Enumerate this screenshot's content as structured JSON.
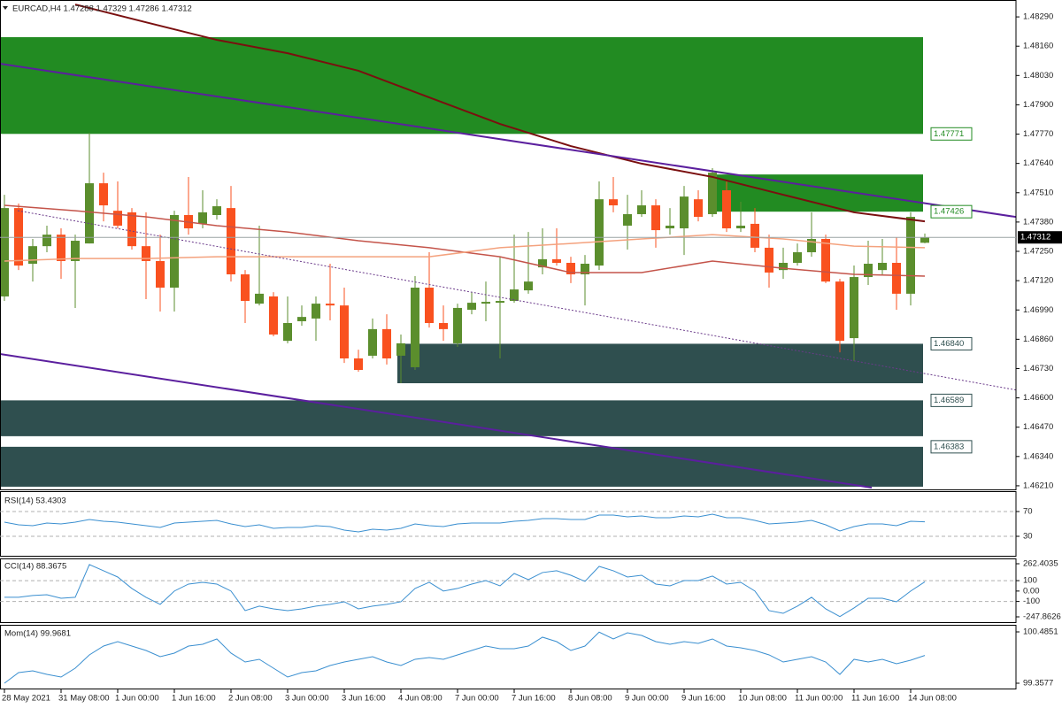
{
  "chart_data": {
    "type": "candlestick",
    "title": "EURCAD,H4  1.47288 1.47329 1.47286 1.47312",
    "categories": [
      "28 May 2021",
      null,
      null,
      null,
      "31 May 08:00",
      null,
      null,
      null,
      "1 Jun 00:00",
      null,
      null,
      null,
      "1 Jun 16:00",
      null,
      null,
      null,
      "2 Jun 08:00",
      null,
      null,
      null,
      "3 Jun 00:00",
      null,
      null,
      null,
      "3 Jun 16:00",
      null,
      null,
      null,
      "4 Jun 08:00",
      null,
      null,
      null,
      "7 Jun 00:00",
      null,
      null,
      null,
      "7 Jun 16:00",
      null,
      null,
      null,
      "8 Jun 08:00",
      null,
      null,
      null,
      "9 Jun 00:00",
      null,
      null,
      null,
      "9 Jun 16:00",
      null,
      null,
      null,
      "10 Jun 08:00",
      null,
      null,
      null,
      "11 Jun 00:00",
      null,
      null,
      null,
      "11 Jun 16:00",
      null,
      null,
      null,
      "14 Jun 08:00",
      null
    ],
    "open": [
      1.4705,
      1.47442,
      1.47195,
      1.47273,
      1.47324,
      1.47207,
      1.47285,
      1.47552,
      1.4743,
      1.47423,
      1.47273,
      1.47207,
      1.47089,
      1.47411,
      1.47372,
      1.47411,
      1.47442,
      1.47148,
      1.47018,
      1.4705,
      1.46853,
      1.4694,
      1.46952,
      1.47018,
      1.4701,
      1.46775,
      1.46787,
      1.46905,
      1.46787,
      1.46736,
      1.47089,
      1.46932,
      1.46842,
      1.46991,
      1.47018,
      1.47022,
      1.4703,
      1.47077,
      1.47179,
      1.47215,
      1.47199,
      1.47148,
      1.47187,
      1.47481,
      1.47364,
      1.47415,
      1.47454,
      1.47352,
      1.47352,
      1.47481,
      1.47415,
      1.47521,
      1.47352,
      1.47372,
      1.47266,
      1.47167,
      1.47199,
      1.47246,
      1.47305,
      1.47116,
      1.46865,
      1.47136,
      1.47167,
      1.47199,
      1.47062,
      1.47288
    ],
    "high": [
      1.47501,
      1.47462,
      1.47305,
      1.47364,
      1.47352,
      1.47324,
      1.47776,
      1.47599,
      1.4756,
      1.47442,
      1.47423,
      1.47324,
      1.4743,
      1.4758,
      1.47521,
      1.47481,
      1.4754,
      1.47167,
      1.47364,
      1.47069,
      1.4705,
      1.4701,
      1.4705,
      1.47195,
      1.47089,
      1.46814,
      1.46952,
      1.46971,
      1.46881,
      1.4714,
      1.47246,
      1.4701,
      1.47018,
      1.47069,
      1.47116,
      1.47226,
      1.47324,
      1.47336,
      1.47352,
      1.47352,
      1.47226,
      1.47234,
      1.4756,
      1.4758,
      1.47501,
      1.47521,
      1.47481,
      1.47442,
      1.4754,
      1.47521,
      1.47619,
      1.4756,
      1.4747,
      1.47442,
      1.47324,
      1.47266,
      1.47285,
      1.47423,
      1.47324,
      1.47128,
      1.47187,
      1.47297,
      1.47305,
      1.47312,
      1.47423,
      1.47329
    ],
    "low": [
      1.4703,
      1.47167,
      1.47116,
      1.47246,
      1.47128,
      1.46999,
      1.47285,
      1.47383,
      1.47352,
      1.47258,
      1.47038,
      1.46983,
      1.46983,
      1.47324,
      1.47352,
      1.47391,
      1.47116,
      1.46932,
      1.4701,
      1.46873,
      1.46842,
      1.4692,
      1.46853,
      1.46944,
      1.46755,
      1.46716,
      1.46775,
      1.46748,
      1.46665,
      1.46724,
      1.46912,
      1.46853,
      1.46826,
      1.46971,
      1.4694,
      1.46775,
      1.47022,
      1.47062,
      1.47148,
      1.47187,
      1.47109,
      1.4701,
      1.47167,
      1.47423,
      1.47258,
      1.47403,
      1.47266,
      1.47324,
      1.47234,
      1.47383,
      1.47403,
      1.47336,
      1.47336,
      1.47246,
      1.47089,
      1.47128,
      1.47187,
      1.47226,
      1.47109,
      1.46802,
      1.46763,
      1.47101,
      1.47148,
      1.46991,
      1.4701,
      1.47286
    ],
    "close": [
      1.47442,
      1.47187,
      1.47273,
      1.47324,
      1.47207,
      1.47297,
      1.47552,
      1.47454,
      1.47364,
      1.47273,
      1.47207,
      1.47089,
      1.47411,
      1.47352,
      1.47423,
      1.4745,
      1.47148,
      1.4703,
      1.47062,
      1.46881,
      1.46932,
      1.46959,
      1.47018,
      1.4701,
      1.46775,
      1.46724,
      1.46905,
      1.46775,
      1.46842,
      1.47089,
      1.46932,
      1.46905,
      1.46999,
      1.47022,
      1.47026,
      1.4703,
      1.47081,
      1.47116,
      1.47215,
      1.47199,
      1.47148,
      1.47195,
      1.47481,
      1.47454,
      1.47415,
      1.47454,
      1.47344,
      1.47364,
      1.47493,
      1.47403,
      1.47599,
      1.47352,
      1.47364,
      1.47266,
      1.47156,
      1.47199,
      1.47246,
      1.47305,
      1.47116,
      1.46853,
      1.47136,
      1.47195,
      1.47199,
      1.47062,
      1.47403,
      1.47312
    ],
    "up_color": "#5b8e2d",
    "down_color": "#f9511f",
    "ylim": [
      1.46194,
      1.48361
    ],
    "yticks": [
      {
        "value": 1.4829,
        "label": "1.48290"
      },
      {
        "value": 1.4816,
        "label": "1.48160"
      },
      {
        "value": 1.4803,
        "label": "1.48030"
      },
      {
        "value": 1.479,
        "label": "1.47900"
      },
      {
        "value": 1.4777,
        "label": "1.47770"
      },
      {
        "value": 1.4764,
        "label": "1.47640"
      },
      {
        "value": 1.4751,
        "label": "1.47510"
      },
      {
        "value": 1.4738,
        "label": "1.47380"
      },
      {
        "value": 1.4725,
        "label": "1.47250"
      },
      {
        "value": 1.4712,
        "label": "1.47120"
      },
      {
        "value": 1.4699,
        "label": "1.46990"
      },
      {
        "value": 1.4686,
        "label": "1.46860"
      },
      {
        "value": 1.4673,
        "label": "1.46730"
      },
      {
        "value": 1.466,
        "label": "1.46600"
      },
      {
        "value": 1.4647,
        "label": "1.46470"
      },
      {
        "value": 1.4634,
        "label": "1.46340"
      },
      {
        "value": 1.4621,
        "label": "1.46210"
      }
    ],
    "current_price": 1.47312,
    "moving_averages": [
      {
        "color": "#7a0f0f",
        "x": [
          5,
          10,
          15,
          20,
          25,
          30,
          35,
          40,
          45,
          50,
          55,
          60,
          65
        ],
        "values": [
          1.48345,
          1.48266,
          1.48188,
          1.48129,
          1.48051,
          1.47933,
          1.47815,
          1.47717,
          1.47639,
          1.4758,
          1.47501,
          1.47423,
          1.47383
        ]
      },
      {
        "color": "#c4544a",
        "x": [
          0,
          5,
          10,
          15,
          20,
          25,
          30,
          35,
          40,
          45,
          50,
          55,
          60,
          65
        ],
        "values": [
          1.47454,
          1.4743,
          1.47403,
          1.47364,
          1.47336,
          1.47297,
          1.47266,
          1.47226,
          1.47156,
          1.47156,
          1.47207,
          1.47175,
          1.47148,
          1.4714
        ]
      },
      {
        "color": "#f4a27e",
        "x": [
          0,
          5,
          10,
          15,
          20,
          25,
          30,
          35,
          40,
          45,
          50,
          55,
          60,
          65
        ],
        "values": [
          1.47207,
          1.47218,
          1.47218,
          1.47226,
          1.47226,
          1.47226,
          1.47226,
          1.47266,
          1.47285,
          1.47305,
          1.47324,
          1.47305,
          1.47273,
          1.47266
        ]
      }
    ],
    "zones": [
      {
        "level": 1.47771,
        "edge": 1.482,
        "start": 0,
        "color": "#228b22"
      },
      {
        "level": 1.47426,
        "edge": 1.47591,
        "start": 50,
        "color": "#228b22"
      },
      {
        "level": {
          "value": 1.4684,
          "label": "1.46840"
        },
        "edge": 1.46665,
        "start": 28,
        "color": "#2f4f4f"
      },
      {
        "level": 1.46589,
        "edge": 1.4643,
        "start": 0,
        "color": "#2f4f4f"
      },
      {
        "level": 1.46383,
        "edge": 1.46206,
        "start": 0,
        "color": "#2f4f4f"
      }
    ],
    "indicators": [
      {
        "title": "RSI(14) 53.4303",
        "color": "#3a8fd0",
        "ylim": [
          0,
          100
        ],
        "yticks": [
          70,
          30
        ],
        "levels": [
          70,
          30
        ],
        "values": [
          52.9,
          48.6,
          47.1,
          51.4,
          50,
          52.9,
          57.1,
          54.3,
          52.9,
          50,
          47.1,
          44.3,
          51.4,
          52.9,
          54.3,
          55.7,
          50,
          45.7,
          48.6,
          42.9,
          44.3,
          44.3,
          47.1,
          45.7,
          40,
          37.1,
          41.4,
          40,
          42.9,
          50,
          47.1,
          45.7,
          50,
          51.4,
          51.4,
          51.4,
          54.3,
          55.7,
          58.6,
          58.6,
          57.1,
          57.1,
          64.3,
          64.3,
          61.4,
          62.9,
          60,
          60,
          62.9,
          61.4,
          65.7,
          60,
          60,
          55.7,
          50,
          51.4,
          52.9,
          55.7,
          48.6,
          38.6,
          45.7,
          50,
          50,
          47.1,
          54.3,
          53.4303
        ]
      },
      {
        "title": "CCI(14) 88.3675",
        "color": "#3a8fd0",
        "ylim": [
          -247.8626,
          262.4035
        ],
        "yticks": [
          262.4035,
          100,
          {
            "value": 0,
            "label": "0.00"
          },
          -100,
          -247.8626
        ],
        "levels": [
          100,
          -100
        ],
        "values": [
          -60,
          -60,
          -43,
          -35,
          -69,
          -60,
          255,
          195,
          135,
          25,
          -60,
          -128,
          0,
          67,
          84,
          67,
          0,
          -188,
          -145,
          -171,
          -188,
          -171,
          -145,
          -128,
          -103,
          -171,
          -145,
          -128,
          -103,
          25,
          84,
          0,
          25,
          67,
          101,
          50,
          169,
          110,
          178,
          195,
          152,
          93,
          237,
          195,
          135,
          152,
          67,
          50,
          101,
          101,
          144,
          67,
          84,
          0,
          -188,
          -214,
          -145,
          -60,
          -171,
          -245,
          -162,
          -69,
          -69,
          -103,
          0,
          88.3675
        ]
      },
      {
        "title": "Mom(14) 99.9681",
        "color": "#3a8fd0",
        "ylim": [
          99.3577,
          100.4851
        ],
        "yticks": [
          100.4851,
          99.3577
        ],
        "levels": [],
        "values": [
          99.358,
          99.591,
          99.63,
          99.552,
          99.494,
          99.688,
          99.98,
          100.174,
          100.271,
          100.174,
          100.077,
          99.941,
          100.019,
          100.174,
          100.213,
          100.33,
          100.019,
          99.824,
          99.883,
          99.688,
          99.494,
          99.591,
          99.63,
          99.747,
          99.824,
          99.883,
          99.941,
          99.824,
          99.747,
          99.883,
          99.922,
          99.883,
          99.98,
          100.077,
          100.174,
          100.116,
          100.116,
          100.174,
          100.369,
          100.271,
          100.077,
          100.174,
          100.48,
          100.33,
          100.466,
          100.407,
          100.271,
          100.213,
          100.271,
          100.232,
          100.33,
          100.174,
          100.135,
          100.077,
          99.98,
          99.824,
          99.883,
          99.941,
          99.824,
          99.552,
          99.883,
          99.824,
          99.883,
          99.786,
          99.863,
          99.9681
        ]
      }
    ]
  }
}
